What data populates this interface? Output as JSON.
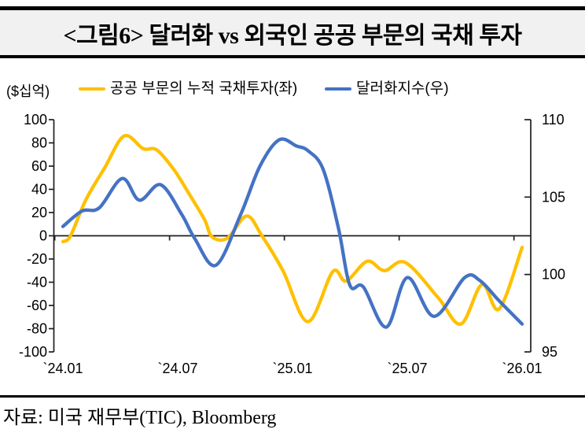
{
  "title": "<그림6> 달러화 vs 외국인 공공 부문의 국채 투자",
  "source": "자료: 미국 재무부(TIC), Bloomberg",
  "colors": {
    "series_public": "#FFC000",
    "series_dollar": "#4472C4",
    "axis": "#1f1f1f",
    "title_band_bg": "#f1f1f1",
    "border": "#000000"
  },
  "chart_data": {
    "type": "line",
    "title": "달러화 vs 외국인 공공 부문의 국채 투자",
    "x_unit": "months_since_2024_01",
    "x_tick_months": [
      0,
      6,
      12,
      18,
      24
    ],
    "x_tick_labels": [
      "`24.01",
      "`24.07",
      "`25.01",
      "`25.07",
      "`26.01"
    ],
    "left_axis": {
      "label": "($십억)",
      "min": -100,
      "max": 100,
      "step": 20,
      "ticks": [
        100,
        80,
        60,
        40,
        20,
        0,
        -20,
        -40,
        -60,
        -80,
        -100
      ]
    },
    "right_axis": {
      "min": 95,
      "max": 110,
      "step": 5,
      "ticks": [
        110,
        105,
        100,
        95
      ]
    },
    "grid": false,
    "legend_position": "top",
    "series": [
      {
        "name": "공공 부문의 누적 국채투자(좌)",
        "axis": "left",
        "color": "#FFC000",
        "points": [
          [
            0,
            -5
          ],
          [
            0.4,
            0
          ],
          [
            1.2,
            31
          ],
          [
            2.2,
            59
          ],
          [
            3.2,
            86
          ],
          [
            4.2,
            75
          ],
          [
            4.9,
            74
          ],
          [
            5.8,
            57
          ],
          [
            6.6,
            36
          ],
          [
            7.4,
            14
          ],
          [
            7.8,
            -1
          ],
          [
            8.6,
            -2
          ],
          [
            9.6,
            17
          ],
          [
            10.4,
            0
          ],
          [
            11.5,
            -30
          ],
          [
            12.8,
            -74
          ],
          [
            14.1,
            -31
          ],
          [
            14.8,
            -39
          ],
          [
            15.9,
            -22
          ],
          [
            16.8,
            -30
          ],
          [
            17.9,
            -23
          ],
          [
            19.6,
            -53
          ],
          [
            20.8,
            -76
          ],
          [
            21.9,
            -42
          ],
          [
            22.8,
            -63
          ],
          [
            24,
            -10
          ]
        ]
      },
      {
        "name": "달러화지수(우)",
        "axis": "right",
        "color": "#4472C4",
        "points": [
          [
            0,
            103.1
          ],
          [
            1,
            104.1
          ],
          [
            1.9,
            104.3
          ],
          [
            3.1,
            106.2
          ],
          [
            4,
            104.8
          ],
          [
            5.1,
            105.8
          ],
          [
            6.2,
            103.9
          ],
          [
            6.9,
            102.3
          ],
          [
            8,
            100.6
          ],
          [
            9.3,
            103.9
          ],
          [
            10.3,
            107.0
          ],
          [
            11.3,
            108.7
          ],
          [
            12.2,
            108.3
          ],
          [
            12.8,
            108.0
          ],
          [
            13.6,
            106.8
          ],
          [
            14.4,
            103.0
          ],
          [
            15,
            99.3
          ],
          [
            15.7,
            99.2
          ],
          [
            16.9,
            96.6
          ],
          [
            18,
            99.8
          ],
          [
            19.4,
            97.3
          ],
          [
            21,
            99.8
          ],
          [
            21.8,
            99.6
          ],
          [
            22.8,
            98.3
          ],
          [
            24,
            96.8
          ]
        ]
      }
    ]
  }
}
